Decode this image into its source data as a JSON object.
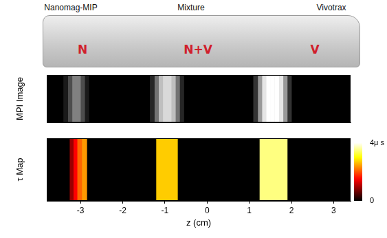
{
  "photo": {
    "labels": [
      "Nanomag-MIP",
      "Mixture",
      "Vivotrax"
    ],
    "marks": [
      "N",
      "N+V",
      "V"
    ]
  },
  "chart_data": [
    {
      "type": "heatmap",
      "y_label": "MPI Image",
      "xlim": [
        -3.8,
        3.4
      ],
      "tick_labels": false,
      "intensity_range": [
        0,
        1
      ],
      "cells": [
        {
          "z": [
            -3.4,
            -3.3
          ],
          "value": 0.1
        },
        {
          "z": [
            -3.3,
            -3.2
          ],
          "value": 0.3
        },
        {
          "z": [
            -3.2,
            -3.1
          ],
          "value": 0.5
        },
        {
          "z": [
            -3.1,
            -3.0
          ],
          "value": 0.5
        },
        {
          "z": [
            -3.0,
            -2.9
          ],
          "value": 0.3
        },
        {
          "z": [
            -2.9,
            -2.8
          ],
          "value": 0.1
        },
        {
          "z": [
            -1.35,
            -1.25
          ],
          "value": 0.15
        },
        {
          "z": [
            -1.25,
            -1.15
          ],
          "value": 0.45
        },
        {
          "z": [
            -1.15,
            -1.05
          ],
          "value": 0.75
        },
        {
          "z": [
            -1.05,
            -0.95
          ],
          "value": 0.85
        },
        {
          "z": [
            -0.95,
            -0.85
          ],
          "value": 0.85
        },
        {
          "z": [
            -0.85,
            -0.75
          ],
          "value": 0.75
        },
        {
          "z": [
            -0.75,
            -0.65
          ],
          "value": 0.45
        },
        {
          "z": [
            -0.65,
            -0.55
          ],
          "value": 0.15
        },
        {
          "z": [
            1.1,
            1.2
          ],
          "value": 0.2
        },
        {
          "z": [
            1.2,
            1.3
          ],
          "value": 0.6
        },
        {
          "z": [
            1.3,
            1.4
          ],
          "value": 0.9
        },
        {
          "z": [
            1.4,
            1.5
          ],
          "value": 1
        },
        {
          "z": [
            1.5,
            1.6
          ],
          "value": 1
        },
        {
          "z": [
            1.6,
            1.7
          ],
          "value": 1
        },
        {
          "z": [
            1.7,
            1.8
          ],
          "value": 0.9
        },
        {
          "z": [
            1.8,
            1.9
          ],
          "value": 0.6
        },
        {
          "z": [
            1.9,
            2.0
          ],
          "value": 0.2
        }
      ]
    },
    {
      "type": "heatmap",
      "y_label": "τ Map",
      "x_label": "z (cm)",
      "xlim": [
        -3.8,
        3.4
      ],
      "xticks": [
        -3,
        -2,
        -1,
        0,
        1,
        2,
        3
      ],
      "tick_labels": "x",
      "cells": [
        {
          "z": [
            -3.25,
            -3.17
          ],
          "value": 0.9
        },
        {
          "z": [
            -3.17,
            -3.08
          ],
          "value": 1.5
        },
        {
          "z": [
            -3.08,
            -2.97
          ],
          "value": 2.1
        },
        {
          "z": [
            -2.97,
            -2.85
          ],
          "value": 2.4
        },
        {
          "z": [
            -1.2,
            -0.7
          ],
          "value": 2.7
        },
        {
          "z": [
            1.25,
            1.9
          ],
          "value": 3.5
        }
      ],
      "colorbar": {
        "range": [
          0,
          4
        ],
        "ticks": [
          0,
          {
            "value": 4,
            "label": "4μ s"
          }
        ]
      }
    }
  ]
}
